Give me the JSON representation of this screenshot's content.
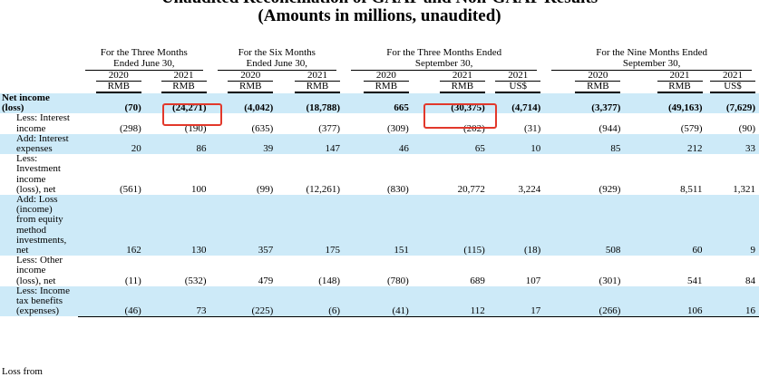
{
  "title_line1": "Unaudited Reconciliation of GAAP and Non-GAAP Results",
  "title_line2": "(Amounts in millions, unaudited)",
  "periods": [
    {
      "label_line1": "For the Three Months",
      "label_line2": "Ended June 30,",
      "span": 2
    },
    {
      "label_line1": "For the Six Months",
      "label_line2": "Ended June 30,",
      "span": 2
    },
    {
      "label_line1": "For the Three Months Ended",
      "label_line2": "September 30,",
      "span": 3
    },
    {
      "label_line1": "For the Nine Months Ended",
      "label_line2": "September 30,",
      "span": 3
    }
  ],
  "years": [
    "2020",
    "2021",
    "2020",
    "2021",
    "2020",
    "2021",
    "2021",
    "2020",
    "2021",
    "2021"
  ],
  "currencies": [
    "RMB",
    "RMB",
    "RMB",
    "RMB",
    "RMB",
    "RMB",
    "US$",
    "RMB",
    "RMB",
    "US$"
  ],
  "rows": [
    {
      "label_lines": [
        "Net income",
        "(loss)"
      ],
      "values": [
        "(70)",
        "(24,271)",
        "(4,042)",
        "(18,788)",
        "665",
        "(30,375)",
        "(4,714)",
        "(3,377)",
        "(49,163)",
        "(7,629)"
      ]
    },
    {
      "label_lines": [
        "Less: Interest",
        "income"
      ],
      "values": [
        "(298)",
        "(190)",
        "(635)",
        "(377)",
        "(309)",
        "(202)",
        "(31)",
        "(944)",
        "(579)",
        "(90)"
      ]
    },
    {
      "label_lines": [
        "Add: Interest",
        "expenses"
      ],
      "values": [
        "20",
        "86",
        "39",
        "147",
        "46",
        "65",
        "10",
        "85",
        "212",
        "33"
      ]
    },
    {
      "label_lines": [
        "Less:",
        "Investment",
        "income",
        "(loss), net"
      ],
      "values": [
        "(561)",
        "100",
        "(99)",
        "(12,261)",
        "(830)",
        "20,772",
        "3,224",
        "(929)",
        "8,511",
        "1,321"
      ]
    },
    {
      "label_lines": [
        "Add: Loss",
        "(income)",
        "from equity",
        "method",
        "investments,",
        "net"
      ],
      "values": [
        "162",
        "130",
        "357",
        "175",
        "151",
        "(115)",
        "(18)",
        "508",
        "60",
        "9"
      ]
    },
    {
      "label_lines": [
        "Less: Other",
        "income",
        "(loss), net"
      ],
      "values": [
        "(11)",
        "(532)",
        "479",
        "(148)",
        "(780)",
        "689",
        "107",
        "(301)",
        "541",
        "84"
      ]
    },
    {
      "label_lines": [
        "Less: Income",
        "tax benefits",
        "(expenses)"
      ],
      "values": [
        "(46)",
        "73",
        "(225)",
        "(6)",
        "(41)",
        "112",
        "17",
        "(266)",
        "106",
        "16"
      ]
    }
  ],
  "cut_text": "Loss from"
}
